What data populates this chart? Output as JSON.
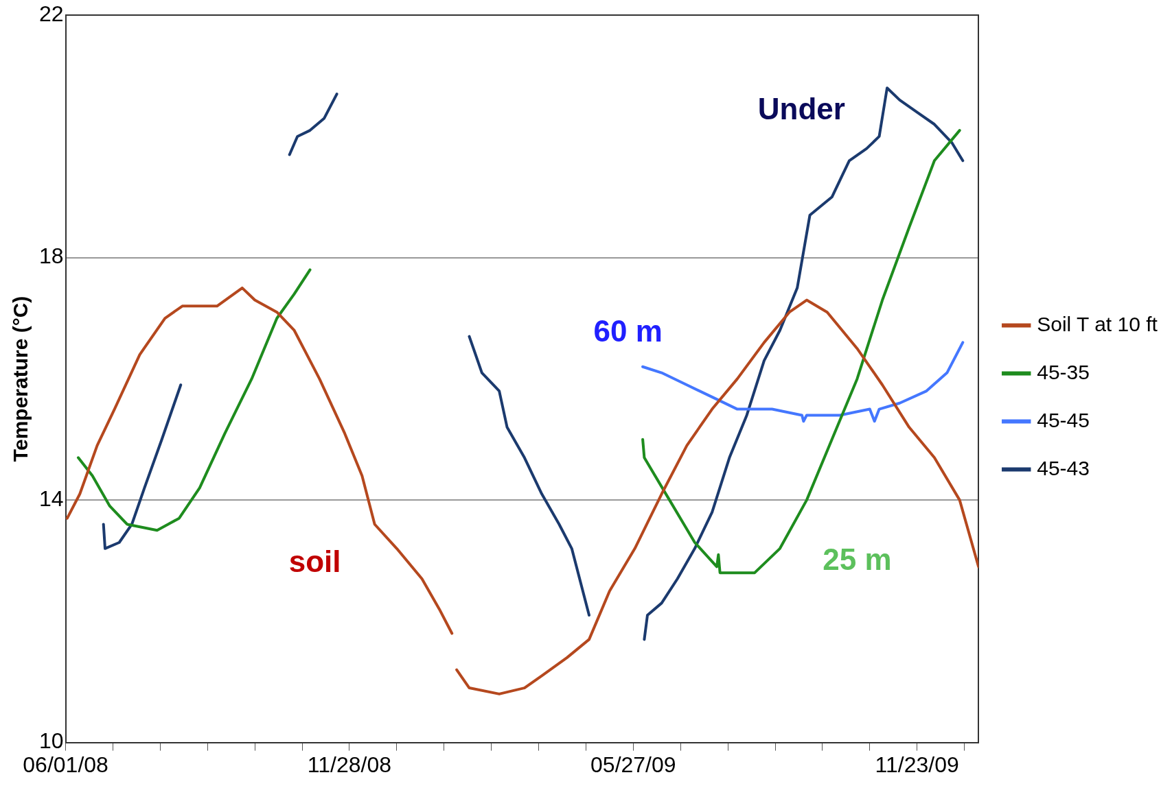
{
  "chart_data": {
    "type": "line",
    "ylabel": "Temperature (°C)",
    "ylim": [
      10,
      22
    ],
    "yticks": [
      10,
      14,
      18,
      22
    ],
    "xlim": [
      "2008-06-01",
      "2010-01-01"
    ],
    "xticks": [
      {
        "value": "2008-06-01",
        "label": "06/01/08"
      },
      {
        "value": "2008-07-01",
        "label": null
      },
      {
        "value": "2008-07-31",
        "label": null
      },
      {
        "value": "2008-08-30",
        "label": null
      },
      {
        "value": "2008-09-29",
        "label": null
      },
      {
        "value": "2008-10-29",
        "label": null
      },
      {
        "value": "2008-11-28",
        "label": "11/28/08"
      },
      {
        "value": "2008-12-28",
        "label": null
      },
      {
        "value": "2009-01-27",
        "label": null
      },
      {
        "value": "2009-02-26",
        "label": null
      },
      {
        "value": "2009-03-28",
        "label": null
      },
      {
        "value": "2009-04-27",
        "label": null
      },
      {
        "value": "2009-05-27",
        "label": "05/27/09"
      },
      {
        "value": "2009-06-26",
        "label": null
      },
      {
        "value": "2009-07-26",
        "label": null
      },
      {
        "value": "2009-08-25",
        "label": null
      },
      {
        "value": "2009-09-24",
        "label": null
      },
      {
        "value": "2009-10-24",
        "label": null
      },
      {
        "value": "2009-11-23",
        "label": "11/23/09"
      },
      {
        "value": "2009-12-23",
        "label": null
      }
    ],
    "grid": "y",
    "legend": "right",
    "marker": "none",
    "line_style": "solid",
    "series": [
      {
        "name": "Soil T at 10 ft",
        "color": "#b5481e",
        "x": [
          "2008-06-02",
          "2008-06-10",
          "2008-06-21",
          "2008-07-02",
          "2008-07-18",
          "2008-08-03",
          "2008-08-14",
          "2008-09-05",
          "2008-09-21",
          "2008-09-29",
          "2008-10-13",
          "2008-10-24",
          "2008-11-09",
          "2008-11-25",
          "2008-12-06",
          "2008-12-14",
          "2008-12-28",
          "2009-01-13",
          "2009-01-24",
          "2009-02-01",
          "2009-02-02",
          "2009-02-04",
          "2009-02-12",
          "2009-03-03",
          "2009-03-19",
          "2009-03-30",
          "2009-04-15",
          "2009-04-29",
          "2009-05-12",
          "2009-05-28",
          "2009-06-14",
          "2009-06-30",
          "2009-07-16",
          "2009-08-01",
          "2009-08-18",
          "2009-09-03",
          "2009-09-14",
          "2009-09-27",
          "2009-10-16",
          "2009-11-01",
          "2009-11-18",
          "2009-12-04",
          "2009-12-20",
          "2010-01-01"
        ],
        "values": [
          13.7,
          14.1,
          14.9,
          15.5,
          16.4,
          17.0,
          17.2,
          17.2,
          17.5,
          17.3,
          17.1,
          16.8,
          16.0,
          15.1,
          14.4,
          13.6,
          13.2,
          12.7,
          12.2,
          11.8,
          null,
          11.2,
          10.9,
          10.8,
          10.9,
          11.1,
          11.4,
          11.7,
          12.5,
          13.2,
          14.1,
          14.9,
          15.5,
          16.0,
          16.6,
          17.1,
          17.3,
          17.1,
          16.5,
          15.9,
          15.2,
          14.7,
          14.0,
          12.9
        ]
      },
      {
        "name": "45-35",
        "color": "#1e8c1e",
        "x": [
          "2008-06-09",
          "2008-06-18",
          "2008-06-29",
          "2008-07-10",
          "2008-07-29",
          "2008-08-12",
          "2008-08-25",
          "2008-09-10",
          "2008-09-27",
          "2008-10-13",
          "2008-10-24",
          "2008-11-03",
          "2009-01-01",
          "2009-06-02",
          "2009-06-03",
          "2009-06-19",
          "2009-07-05",
          "2009-07-19",
          "2009-07-20",
          "2009-07-21",
          "2009-08-12",
          "2009-08-28",
          "2009-09-14",
          "2009-09-30",
          "2009-10-16",
          "2009-11-01",
          "2009-11-18",
          "2009-12-04",
          "2009-12-20"
        ],
        "values": [
          14.7,
          14.4,
          13.9,
          13.6,
          13.5,
          13.7,
          14.2,
          15.1,
          16.0,
          17.0,
          17.4,
          17.8,
          null,
          15.0,
          14.7,
          14.0,
          13.3,
          12.9,
          13.1,
          12.8,
          12.8,
          13.2,
          14.0,
          15.0,
          16.0,
          17.3,
          18.5,
          19.6,
          20.1
        ]
      },
      {
        "name": "45-45",
        "color": "#4477ff",
        "x": [
          "2009-06-02",
          "2009-06-14",
          "2009-06-30",
          "2009-07-16",
          "2009-08-01",
          "2009-08-23",
          "2009-09-11",
          "2009-09-12",
          "2009-09-14",
          "2009-10-05",
          "2009-10-24",
          "2009-10-27",
          "2009-10-30",
          "2009-11-12",
          "2009-11-29",
          "2009-12-12",
          "2009-12-22"
        ],
        "values": [
          16.2,
          16.1,
          15.9,
          15.7,
          15.5,
          15.5,
          15.4,
          15.3,
          15.4,
          15.4,
          15.5,
          15.3,
          15.5,
          15.6,
          15.8,
          16.1,
          16.6
        ]
      },
      {
        "name": "45-43",
        "color": "#1b3a6e",
        "x": [
          "2008-06-25",
          "2008-06-26",
          "2008-07-05",
          "2008-07-13",
          "2008-07-21",
          "2008-08-01",
          "2008-08-09",
          "2008-08-13",
          "2008-09-01",
          "2008-10-21",
          "2008-10-26",
          "2008-11-03",
          "2008-11-12",
          "2008-11-20",
          "2008-12-15",
          "2009-02-12",
          "2009-02-20",
          "2009-03-03",
          "2009-03-08",
          "2009-03-19",
          "2009-03-30",
          "2009-04-10",
          "2009-04-18",
          "2009-04-23",
          "2009-04-29",
          "2009-05-15",
          "2009-06-03",
          "2009-06-05",
          "2009-06-14",
          "2009-06-24",
          "2009-07-05",
          "2009-07-16",
          "2009-07-27",
          "2009-08-07",
          "2009-08-18",
          "2009-08-28",
          "2009-09-08",
          "2009-09-16",
          "2009-09-30",
          "2009-10-11",
          "2009-10-22",
          "2009-10-30",
          "2009-11-04",
          "2009-11-12",
          "2009-11-23",
          "2009-12-04",
          "2009-12-15",
          "2009-12-22"
        ],
        "values": [
          13.6,
          13.2,
          13.3,
          13.6,
          14.2,
          15.0,
          15.6,
          15.9,
          null,
          19.7,
          20.0,
          20.1,
          20.3,
          20.7,
          null,
          16.7,
          16.1,
          15.8,
          15.2,
          14.7,
          14.1,
          13.6,
          13.2,
          12.7,
          12.1,
          null,
          11.7,
          12.1,
          12.3,
          12.7,
          13.2,
          13.8,
          14.7,
          15.4,
          16.3,
          16.8,
          17.5,
          18.7,
          19.0,
          19.6,
          19.8,
          20.0,
          20.8,
          20.6,
          20.4,
          20.2,
          19.9,
          19.6
        ]
      }
    ],
    "annotations": [
      "soil",
      "60 m",
      "Under",
      "25 m"
    ]
  }
}
